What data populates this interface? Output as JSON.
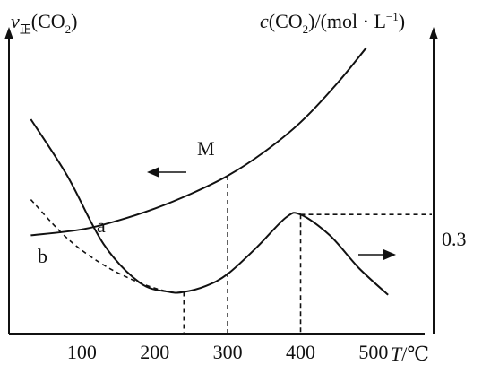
{
  "chart_data": {
    "type": "line",
    "left_axis_label": "v正(CO₂)",
    "left_axis_label_main": "v",
    "left_axis_label_sub": "正",
    "left_axis_label_rest": "(CO",
    "left_axis_label_sub2": "2",
    "left_axis_label_end": ")",
    "right_axis_label_c": "c",
    "right_axis_label_rest1": "(CO",
    "right_axis_label_sub": "2",
    "right_axis_label_rest2": ")/(mol · L",
    "right_axis_label_sup": "−1",
    "right_axis_label_end": ")",
    "x_axis_label_T": "T",
    "x_axis_label_unit": "/℃",
    "x_ticks": [
      "100",
      "200",
      "300",
      "400",
      "500"
    ],
    "xlim": [
      0,
      580
    ],
    "right_tick_label": "0.3",
    "right_tick_value": 0.3,
    "point_label": "M",
    "curve_labels": [
      "a",
      "b"
    ],
    "series": [
      {
        "axis": "left",
        "x": [
          30,
          100,
          150,
          200,
          250,
          300,
          350,
          400,
          450,
          490
        ],
        "y_rel": [
          0.33,
          0.35,
          0.38,
          0.42,
          0.47,
          0.53,
          0.61,
          0.71,
          0.84,
          0.96
        ]
      },
      {
        "name": "a",
        "axis": "left",
        "x": [
          30,
          80,
          130,
          180,
          220,
          240,
          270,
          300,
          340,
          380,
          400,
          440,
          480,
          520
        ],
        "y_rel": [
          0.72,
          0.53,
          0.3,
          0.17,
          0.14,
          0.14,
          0.16,
          0.2,
          0.29,
          0.39,
          0.4,
          0.33,
          0.22,
          0.13
        ]
      },
      {
        "name": "b",
        "axis": "left",
        "x": [
          30,
          80,
          130,
          180,
          220,
          240
        ],
        "y_rel": [
          0.45,
          0.32,
          0.23,
          0.17,
          0.14,
          0.14
        ]
      }
    ],
    "markers": [
      {
        "x": 300,
        "label": "M"
      },
      {
        "x": 400,
        "value": 0.3
      },
      {
        "x": 240
      }
    ]
  }
}
